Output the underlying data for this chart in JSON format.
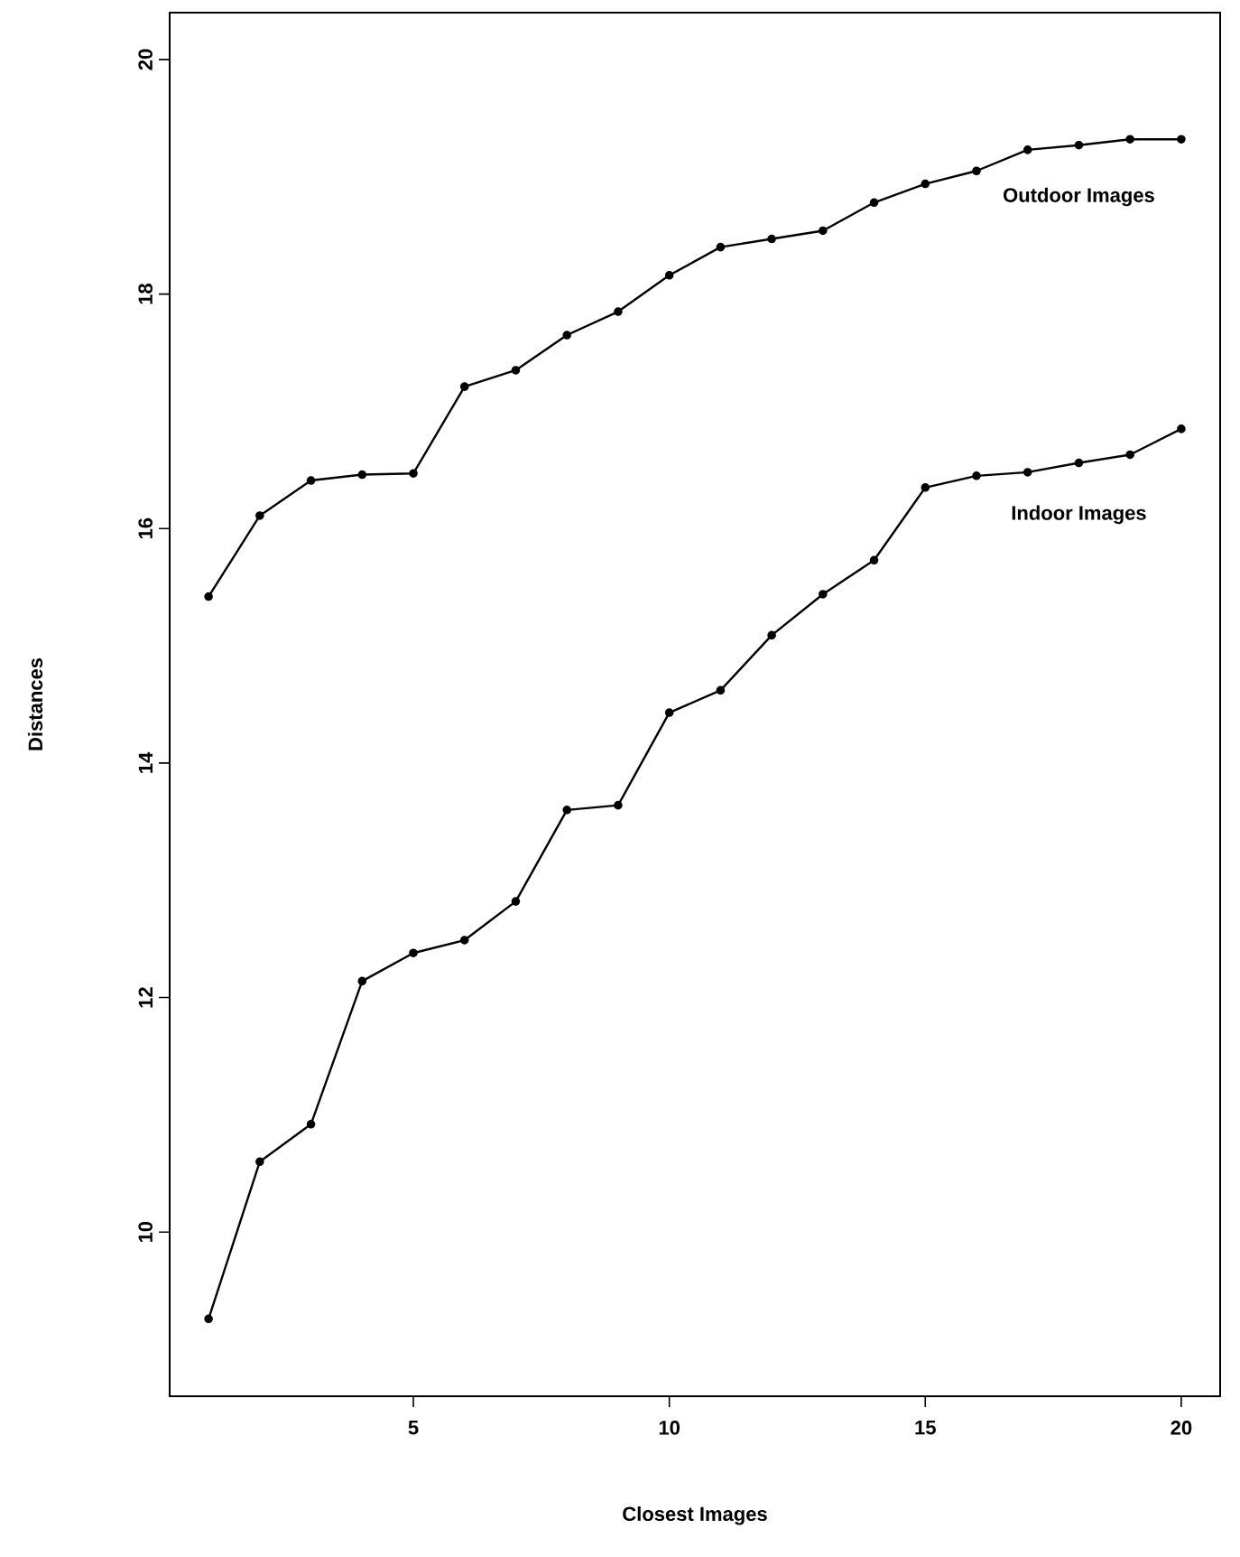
{
  "chart_data": {
    "type": "line",
    "xlabel": "Closest Images",
    "ylabel": "Distances",
    "x": [
      1,
      2,
      3,
      4,
      5,
      6,
      7,
      8,
      9,
      10,
      11,
      12,
      13,
      14,
      15,
      16,
      17,
      18,
      19,
      20
    ],
    "series": [
      {
        "name": "Outdoor Images",
        "color": "#000000",
        "values": [
          15.42,
          16.11,
          16.41,
          16.46,
          16.47,
          17.21,
          17.35,
          17.65,
          17.85,
          18.16,
          18.4,
          18.47,
          18.54,
          18.78,
          18.94,
          19.05,
          19.23,
          19.27,
          19.32,
          19.32
        ]
      },
      {
        "name": "Indoor Images",
        "color": "#000000",
        "values": [
          9.26,
          10.6,
          10.92,
          12.14,
          12.38,
          12.49,
          12.82,
          13.6,
          13.64,
          14.43,
          14.62,
          15.09,
          15.44,
          15.73,
          16.35,
          16.45,
          16.48,
          16.56,
          16.63,
          16.85
        ]
      }
    ],
    "xlim": [
      0.24,
      20.76
    ],
    "ylim": [
      8.6,
      20.4
    ],
    "xticks": [
      5,
      10,
      15,
      20
    ],
    "yticks": [
      10,
      12,
      14,
      16,
      18,
      20
    ],
    "marker": "circle",
    "line_style": "solid",
    "grid": false
  }
}
